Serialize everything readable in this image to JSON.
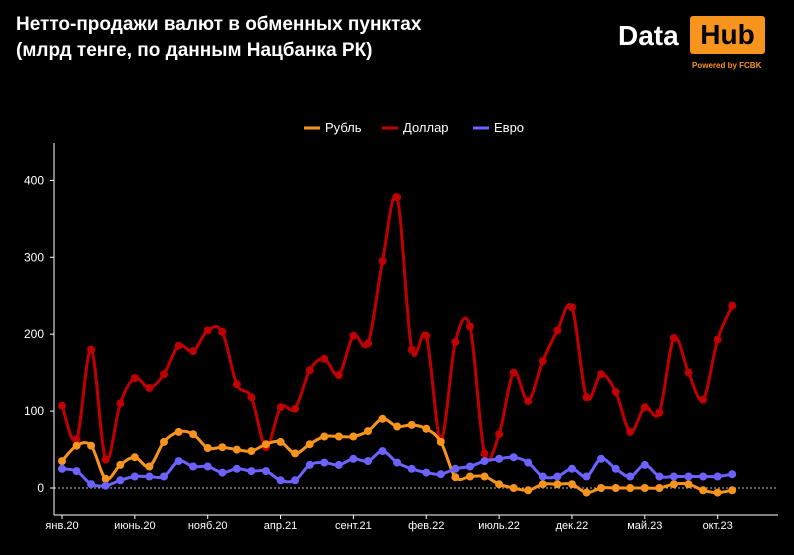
{
  "title": "Нетто-продажи валют в обменных пунктах\n(млрд тенге, по данным Нацбанка РК)",
  "logo": {
    "word1": "Data",
    "word2": "Hub",
    "tagline": "Powered by FCBK"
  },
  "colors": {
    "background": "#000000",
    "rub": "#f7941d",
    "usd": "#c00000",
    "eur": "#6c63ff",
    "axis": "#ffffff"
  },
  "chart_data": {
    "type": "line",
    "title": "",
    "xlabel": "",
    "ylabel": "",
    "ylim": [
      -20,
      450
    ],
    "yticks": [
      0,
      100,
      200,
      300,
      400
    ],
    "xticks": [
      {
        "label": "янв.20",
        "index": 0
      },
      {
        "label": "июнь.20",
        "index": 5
      },
      {
        "label": "нояб.20",
        "index": 10
      },
      {
        "label": "апр.21",
        "index": 15
      },
      {
        "label": "сент.21",
        "index": 20
      },
      {
        "label": "фев.22",
        "index": 25
      },
      {
        "label": "июль.22",
        "index": 30
      },
      {
        "label": "дек.22",
        "index": 35
      },
      {
        "label": "май.23",
        "index": 40
      },
      {
        "label": "окт.23",
        "index": 45
      }
    ],
    "legend_position": "top-center",
    "series": [
      {
        "name": "Рубль",
        "color": "#f7941d",
        "values": [
          35,
          55,
          55,
          12,
          30,
          40,
          28,
          60,
          73,
          70,
          52,
          53,
          50,
          48,
          57,
          60,
          45,
          57,
          67,
          67,
          67,
          74,
          90,
          80,
          82,
          77,
          60,
          14,
          15,
          15,
          5,
          0,
          -3,
          5,
          5,
          5,
          -6,
          0,
          0,
          0,
          0,
          0,
          5,
          5,
          -3,
          -6,
          -3
        ]
      },
      {
        "name": "Доллар",
        "color": "#c00000",
        "values": [
          107,
          63,
          180,
          37,
          110,
          143,
          130,
          148,
          185,
          178,
          205,
          203,
          135,
          118,
          53,
          105,
          103,
          153,
          168,
          147,
          198,
          188,
          295,
          378,
          180,
          198,
          63,
          190,
          210,
          45,
          70,
          150,
          113,
          165,
          205,
          235,
          118,
          148,
          125,
          73,
          105,
          98,
          195,
          150,
          115,
          193,
          237
        ]
      },
      {
        "name": "Евро",
        "color": "#6c63ff",
        "values": [
          25,
          22,
          5,
          3,
          10,
          15,
          15,
          15,
          35,
          28,
          28,
          20,
          25,
          22,
          22,
          10,
          10,
          30,
          33,
          30,
          38,
          35,
          48,
          33,
          25,
          20,
          18,
          25,
          28,
          35,
          38,
          40,
          33,
          15,
          15,
          25,
          15,
          38,
          25,
          15,
          30,
          15,
          15,
          15,
          15,
          15,
          18
        ]
      }
    ]
  }
}
